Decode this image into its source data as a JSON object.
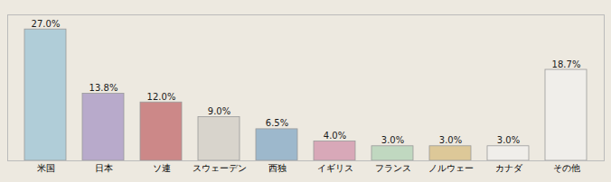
{
  "chart_data": {
    "type": "bar",
    "categories": [
      "米国",
      "日本",
      "ソ連",
      "スウェーデン",
      "西独",
      "イギリス",
      "フランス",
      "ノルウェー",
      "カナダ",
      "その他"
    ],
    "values": [
      27.0,
      13.8,
      12.0,
      9.0,
      6.5,
      4.0,
      3.0,
      3.0,
      3.0,
      18.7
    ],
    "value_labels": [
      "27.0%",
      "13.8%",
      "12.0%",
      "9.0%",
      "6.5%",
      "4.0%",
      "3.0%",
      "3.0%",
      "3.0%",
      "18.7%"
    ],
    "data_labels": true,
    "colors": [
      "#b0cdd8",
      "#b8aacb",
      "#cc8888",
      "#d8d4cc",
      "#9db8cc",
      "#d8a8b8",
      "#c0d8c0",
      "#ddc898",
      "#f0eeea",
      "#f0eeea"
    ],
    "ylim": [
      0,
      30
    ],
    "grid": false,
    "tick_labels": "x"
  }
}
